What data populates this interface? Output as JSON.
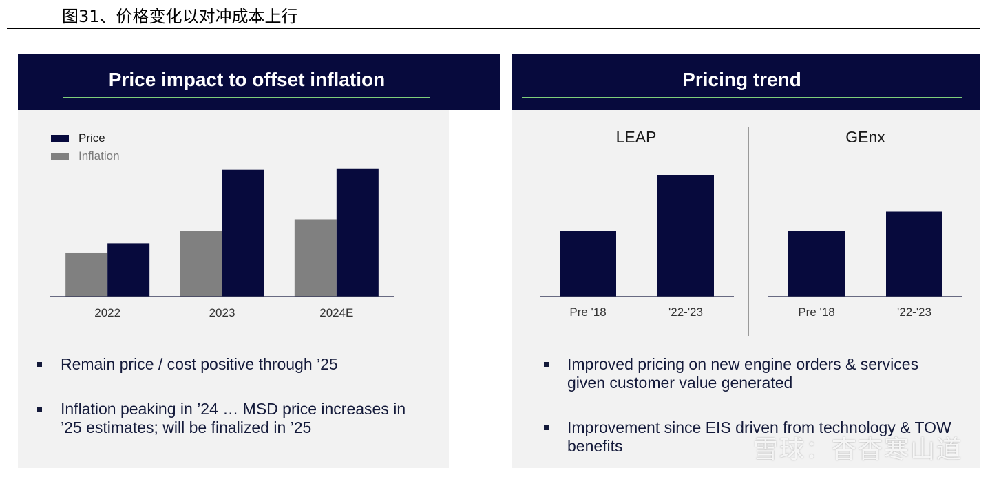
{
  "figure_title": "图31、价格变化以对冲成本上行",
  "left_panel": {
    "title": "Price impact to offset inflation",
    "bullets": [
      "Remain price / cost positive through ’25",
      "Inflation peaking in ’24 … MSD price increases in ’25 estimates; will be finalized in ’25"
    ]
  },
  "right_panel": {
    "title": "Pricing trend",
    "bullets": [
      "Improved pricing on new engine orders & services given customer value generated",
      "Improvement since EIS driven from technology & TOW benefits"
    ]
  },
  "watermark": "雪球：杳杳寒山道",
  "colors": {
    "price": "#070a3d",
    "inflation": "#808080",
    "header_bg": "#070a3d",
    "header_rule": "#7fce7a"
  },
  "chart_data": [
    {
      "type": "bar",
      "categories": [
        "2022",
        "2023",
        "2024E"
      ],
      "series": [
        {
          "name": "Inflation",
          "values": [
            33,
            49,
            58
          ]
        },
        {
          "name": "Price",
          "values": [
            40,
            95,
            96
          ]
        }
      ],
      "ylim": [
        0,
        100
      ],
      "legend": "top-left"
    },
    {
      "type": "bar",
      "title": "LEAP",
      "categories": [
        "Pre '18",
        "'22-'23"
      ],
      "values": [
        50,
        93
      ],
      "ylim": [
        0,
        100
      ]
    },
    {
      "type": "bar",
      "title": "GEnx",
      "categories": [
        "Pre '18",
        "'22-'23"
      ],
      "values": [
        50,
        65
      ],
      "ylim": [
        0,
        100
      ]
    }
  ]
}
